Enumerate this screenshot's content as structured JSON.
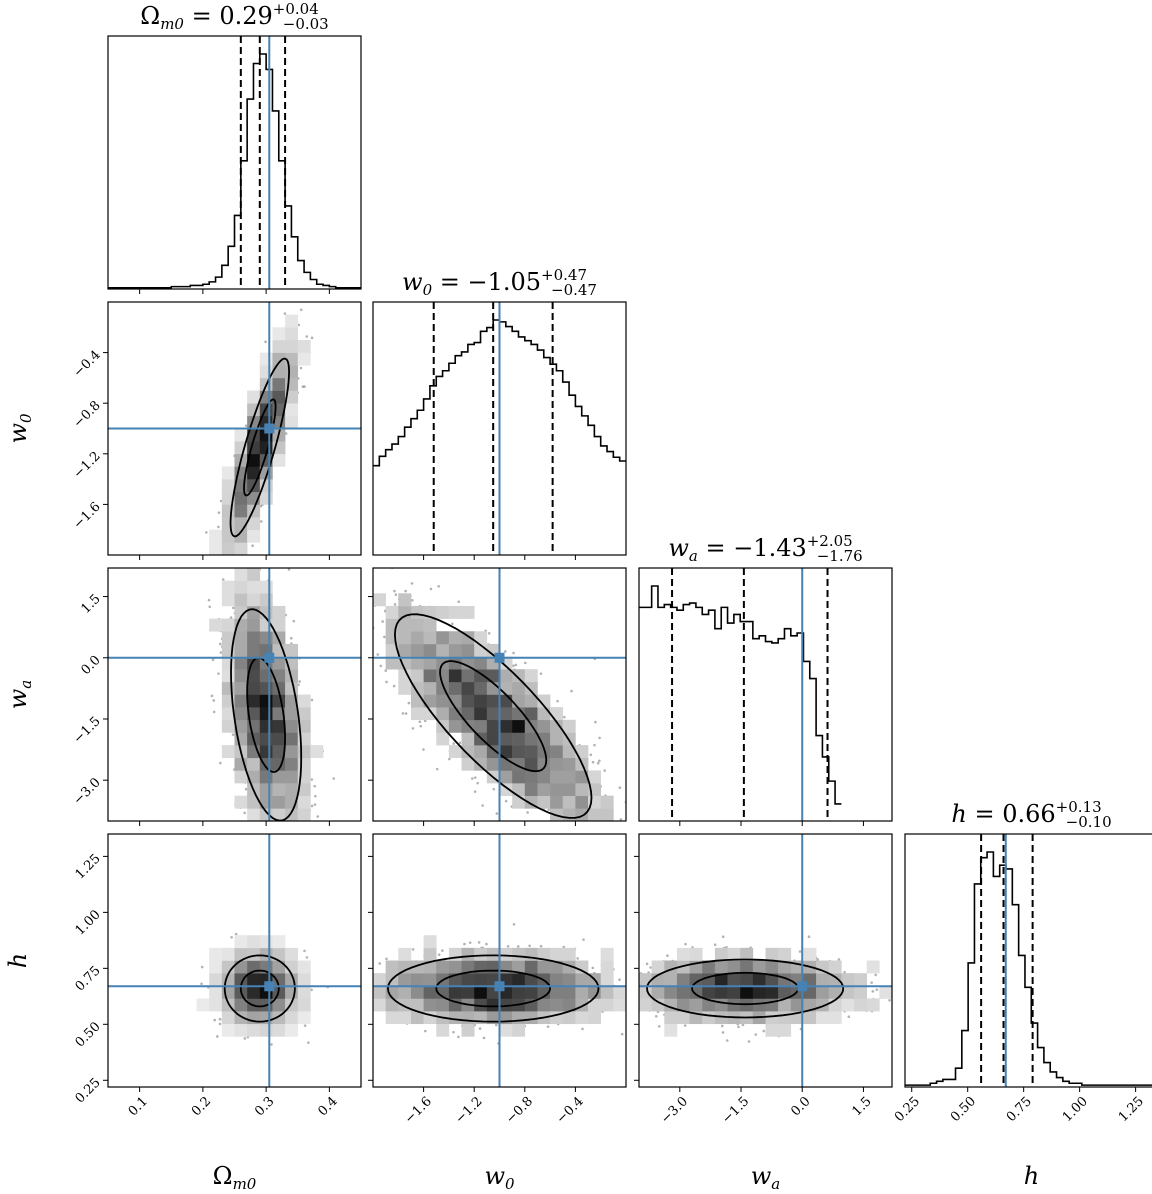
{
  "colors": {
    "truth": "#4682b4",
    "hist": "#000000",
    "points": "#555555",
    "frame": "#000000"
  },
  "parameters": [
    {
      "key": "Om",
      "title_lhs": "Ωm0 = ",
      "median": "0.29",
      "plus": "+0.04",
      "minus": "−0.03",
      "xlabel": "Ωm0",
      "ylabel": ""
    },
    {
      "key": "w0",
      "title_lhs": "w0 = ",
      "median": "−1.05",
      "plus": "+0.47",
      "minus": "−0.47",
      "xlabel": "w0",
      "ylabel": "w0"
    },
    {
      "key": "wa",
      "title_lhs": "wa = ",
      "median": "−1.43",
      "plus": "+2.05",
      "minus": "−1.76",
      "xlabel": "wa",
      "ylabel": "wa"
    },
    {
      "key": "h",
      "title_lhs": "h = ",
      "median": "0.66",
      "plus": "+0.13",
      "minus": "−0.10",
      "xlabel": "h",
      "ylabel": "h"
    }
  ],
  "chart_data": {
    "type": "corner",
    "parameters": [
      "Ωm0",
      "w0",
      "wa",
      "h"
    ],
    "truth": {
      "Om": 0.305,
      "w0": -1.0,
      "wa": 0.0,
      "h": 0.67
    },
    "ranges": {
      "Om": [
        0.05,
        0.45
      ],
      "w0": [
        -2.0,
        0.0
      ],
      "wa": [
        -4.0,
        2.2
      ],
      "h": [
        0.22,
        1.35
      ]
    },
    "ticks": {
      "Om": [
        "0.1",
        "0.2",
        "0.3",
        "0.4"
      ],
      "w0": [
        "−1.6",
        "−1.2",
        "−0.8",
        "−0.4"
      ],
      "wa": [
        "−3.0",
        "−1.5",
        "0.0",
        "1.5"
      ],
      "h": [
        "0.25",
        "0.50",
        "0.75",
        "1.00",
        "1.25"
      ]
    },
    "tick_values": {
      "Om": [
        0.1,
        0.2,
        0.3,
        0.4
      ],
      "w0": [
        -1.6,
        -1.2,
        -0.8,
        -0.4
      ],
      "wa": [
        -3.0,
        -1.5,
        0.0,
        1.5
      ],
      "h": [
        0.25,
        0.5,
        0.75,
        1.0,
        1.25
      ]
    },
    "quantiles": {
      "Om": [
        0.26,
        0.29,
        0.33
      ],
      "w0": [
        -1.52,
        -1.05,
        -0.58
      ],
      "wa": [
        -3.19,
        -1.43,
        0.62
      ],
      "h": [
        0.56,
        0.66,
        0.79
      ]
    },
    "marginals": {
      "Om": {
        "edges_start": 0.05,
        "bin": 0.01,
        "counts": [
          1,
          1,
          1,
          1,
          1,
          1,
          1,
          1,
          1,
          1,
          2,
          2,
          2,
          3,
          3,
          4,
          6,
          10,
          20,
          36,
          62,
          108,
          160,
          190,
          198,
          185,
          150,
          108,
          70,
          44,
          24,
          14,
          8,
          4,
          3,
          2,
          1,
          1,
          1,
          1
        ]
      },
      "w0": {
        "edges_start": -2.0,
        "bin": 0.05,
        "counts": [
          95,
          105,
          112,
          118,
          126,
          136,
          145,
          154,
          166,
          180,
          190,
          196,
          204,
          212,
          216,
          224,
          226,
          238,
          242,
          250,
          248,
          243,
          238,
          232,
          228,
          224,
          218,
          210,
          203,
          196,
          184,
          170,
          158,
          148,
          138,
          126,
          116,
          110,
          104,
          100
        ]
      },
      "wa": {
        "edges_start": -4.0,
        "bin": 0.155,
        "counts": [
          150,
          150,
          165,
          150,
          152,
          150,
          148,
          152,
          153,
          150,
          145,
          148,
          135,
          150,
          139,
          145,
          140,
          140,
          128,
          130,
          126,
          125,
          128,
          135,
          130,
          132,
          112,
          100,
          60,
          45,
          28,
          12
        ]
      },
      "h": {
        "edges_start": 0.22,
        "bin": 0.0282,
        "counts": [
          1,
          1,
          1,
          1,
          2,
          3,
          4,
          4,
          10,
          30,
          66,
          108,
          122,
          125,
          112,
          118,
          116,
          97,
          70,
          53,
          34,
          21,
          13,
          8,
          5,
          3,
          2,
          2,
          1,
          1,
          1,
          1,
          1,
          1,
          1,
          1,
          1,
          1,
          1,
          1
        ]
      }
    },
    "pairs": [
      {
        "x": "Om",
        "y": "w0",
        "center": [
          0.29,
          -1.15
        ],
        "sd": [
          0.025,
          0.38
        ],
        "rho": 0.85
      },
      {
        "x": "Om",
        "y": "wa",
        "center": [
          0.3,
          -1.4
        ],
        "sd": [
          0.03,
          1.4
        ],
        "rho": -0.4
      },
      {
        "x": "w0",
        "y": "wa",
        "center": [
          -1.05,
          -1.43
        ],
        "sd": [
          0.42,
          1.35
        ],
        "rho": -0.8
      },
      {
        "x": "Om",
        "y": "h",
        "center": [
          0.29,
          0.66
        ],
        "sd": [
          0.03,
          0.08
        ],
        "rho": 0.0
      },
      {
        "x": "w0",
        "y": "h",
        "center": [
          -1.05,
          0.66
        ],
        "sd": [
          0.45,
          0.08
        ],
        "rho": 0.0
      },
      {
        "x": "wa",
        "y": "h",
        "center": [
          -1.4,
          0.66
        ],
        "sd": [
          1.3,
          0.07
        ],
        "rho": 0.0
      }
    ]
  }
}
